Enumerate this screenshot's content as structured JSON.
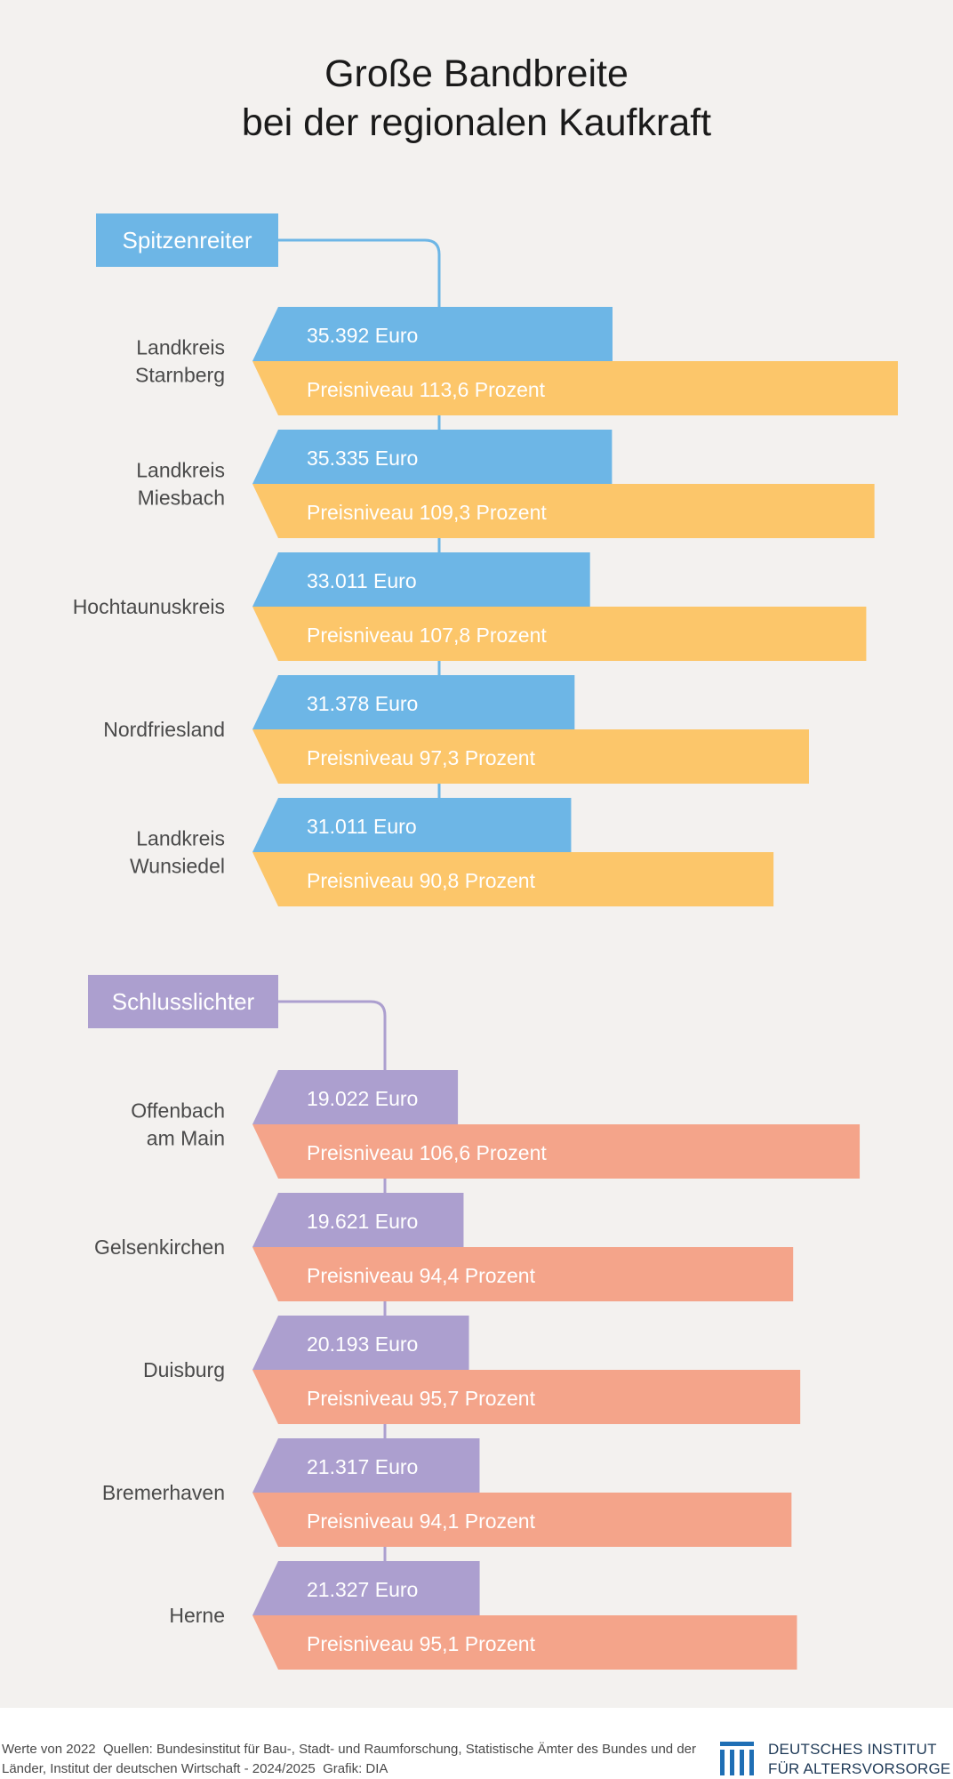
{
  "title": "Große Bandbreite\nbei der regionalen Kaufkraft",
  "footer": {
    "values_note": "Werte von 2022",
    "sources": "Quellen: Bundesinstitut für Bau-, Stadt- und Raumforschung, Statistische Ämter des Bundes und der Länder, Institut der deutschen Wirtschaft - 2024/2025",
    "graphic": "Grafik: DIA"
  },
  "logo": {
    "line1": "DEUTSCHES INSTITUT",
    "line2": "FÜR ALTERSVORSORGE"
  },
  "colors": {
    "top_income": "#6db6e6",
    "top_price": "#fcc66a",
    "bottom_income": "#ac9fcf",
    "bottom_price": "#f4a48a",
    "logo": "#1f6fb5"
  },
  "chart_data": {
    "type": "bar",
    "groups": [
      {
        "label": "Spitzenreiter",
        "regions": [
          {
            "name": "Landkreis\nStarnberg",
            "income": 35392,
            "income_label": "35.392 Euro",
            "price_level": 113.6,
            "price_label": "Preisniveau 113,6 Prozent"
          },
          {
            "name": "Landkreis\nMiesbach",
            "income": 35335,
            "income_label": "35.335 Euro",
            "price_level": 109.3,
            "price_label": "Preisniveau 109,3 Prozent"
          },
          {
            "name": "Hochtaunuskreis",
            "income": 33011,
            "income_label": "33.011 Euro",
            "price_level": 107.8,
            "price_label": "Preisniveau 107,8 Prozent"
          },
          {
            "name": "Nordfriesland",
            "income": 31378,
            "income_label": "31.378 Euro",
            "price_level": 97.3,
            "price_label": "Preisniveau 97,3 Prozent"
          },
          {
            "name": "Landkreis\nWunsiedel",
            "income": 31011,
            "income_label": "31.011 Euro",
            "price_level": 90.8,
            "price_label": "Preisniveau 90,8 Prozent"
          }
        ]
      },
      {
        "label": "Schlusslichter",
        "regions": [
          {
            "name": "Offenbach\nam Main",
            "income": 19022,
            "income_label": "19.022 Euro",
            "price_level": 106.6,
            "price_label": "Preisniveau 106,6 Prozent"
          },
          {
            "name": "Gelsenkirchen",
            "income": 19621,
            "income_label": "19.621 Euro",
            "price_level": 94.4,
            "price_label": "Preisniveau 94,4 Prozent"
          },
          {
            "name": "Duisburg",
            "income": 20193,
            "income_label": "20.193 Euro",
            "price_level": 95.7,
            "price_label": "Preisniveau 95,7 Prozent"
          },
          {
            "name": "Bremerhaven",
            "income": 21317,
            "income_label": "21.317 Euro",
            "price_level": 94.1,
            "price_label": "Preisniveau 94,1 Prozent"
          },
          {
            "name": "Herne",
            "income": 21327,
            "income_label": "21.327 Euro",
            "price_level": 95.1,
            "price_label": "Preisniveau 95,1 Prozent"
          }
        ]
      }
    ]
  }
}
